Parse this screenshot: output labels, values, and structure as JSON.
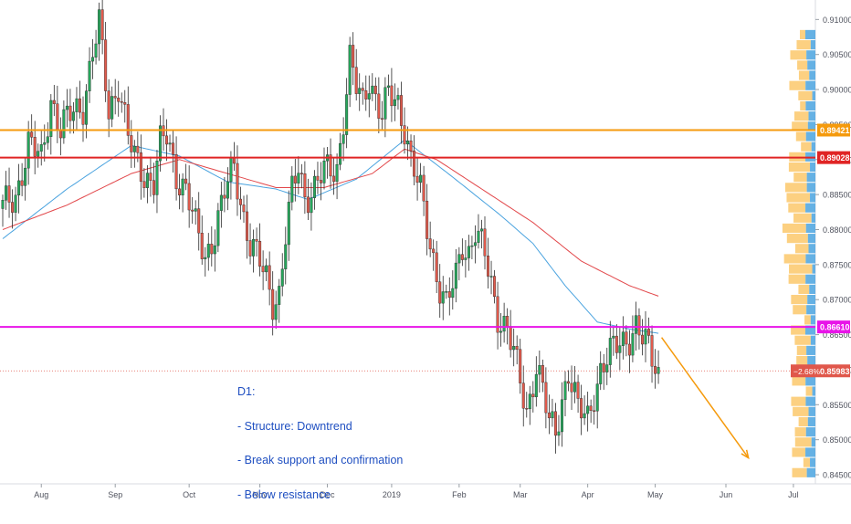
{
  "chart_data": {
    "type": "candlestick",
    "instrument_colors": {
      "up": "#26a65b",
      "down": "#e05a4c",
      "wick": "#2b2b2b"
    },
    "ylim": [
      0.8437,
      0.912
    ],
    "y_ticks": [
      "0.91000",
      "0.90500",
      "0.90000",
      "0.89500",
      "0.89000",
      "0.88500",
      "0.88000",
      "0.87500",
      "0.87000",
      "0.86500",
      "0.86000",
      "0.85500",
      "0.85000",
      "0.84500"
    ],
    "y_tick_values": [
      0.91,
      0.905,
      0.9,
      0.895,
      0.89,
      0.885,
      0.88,
      0.875,
      0.87,
      0.865,
      0.86,
      0.855,
      0.85,
      0.845
    ],
    "x_ticks": [
      "Aug",
      "Sep",
      "Oct",
      "Nov",
      "Dec",
      "2019",
      "Feb",
      "Mar",
      "Apr",
      "May",
      "Jun",
      "Jul"
    ],
    "x_tick_bar_index": [
      12,
      35,
      58,
      80,
      101,
      121,
      142,
      161,
      182,
      203,
      225,
      246
    ],
    "bar_count_total": 260,
    "last_bar_index": 204,
    "horizontal_levels": [
      {
        "name": "resistance-upper",
        "value": 0.89421,
        "label": "0.89421",
        "color": "#f59a0c"
      },
      {
        "name": "resistance-lower",
        "value": 0.89028,
        "label": "0.89028",
        "color": "#e02424"
      },
      {
        "name": "support-broken",
        "value": 0.8661,
        "label": "0.86610",
        "color": "#e815e8"
      }
    ],
    "last_price": {
      "value": 0.85983,
      "label": "0.85983",
      "change_label": "−2.68%",
      "color": "#e0574b"
    },
    "moving_averages": [
      {
        "color": "#4aa3df",
        "anchors": [
          [
            0,
            0.8787
          ],
          [
            20,
            0.8858
          ],
          [
            40,
            0.892
          ],
          [
            55,
            0.8905
          ],
          [
            70,
            0.8868
          ],
          [
            85,
            0.8858
          ],
          [
            95,
            0.8843
          ],
          [
            110,
            0.8872
          ],
          [
            125,
            0.8928
          ],
          [
            140,
            0.8875
          ],
          [
            155,
            0.882
          ],
          [
            165,
            0.878
          ],
          [
            175,
            0.872
          ],
          [
            185,
            0.8668
          ],
          [
            195,
            0.8658
          ],
          [
            204,
            0.8652
          ]
        ]
      },
      {
        "color": "#e2474a",
        "anchors": [
          [
            0,
            0.88
          ],
          [
            20,
            0.8835
          ],
          [
            40,
            0.888
          ],
          [
            55,
            0.89
          ],
          [
            70,
            0.888
          ],
          [
            85,
            0.886
          ],
          [
            100,
            0.886
          ],
          [
            115,
            0.888
          ],
          [
            125,
            0.8915
          ],
          [
            135,
            0.89
          ],
          [
            150,
            0.8855
          ],
          [
            165,
            0.881
          ],
          [
            180,
            0.8755
          ],
          [
            195,
            0.872
          ],
          [
            204,
            0.8705
          ]
        ]
      }
    ],
    "price_path_anchors": [
      [
        0,
        0.883
      ],
      [
        4,
        0.885
      ],
      [
        8,
        0.892
      ],
      [
        12,
        0.89
      ],
      [
        15,
        0.899
      ],
      [
        18,
        0.894
      ],
      [
        22,
        0.897
      ],
      [
        25,
        0.898
      ],
      [
        28,
        0.905
      ],
      [
        30,
        0.909
      ],
      [
        33,
        0.897
      ],
      [
        36,
        0.901
      ],
      [
        39,
        0.893
      ],
      [
        41,
        0.89
      ],
      [
        44,
        0.888
      ],
      [
        47,
        0.887
      ],
      [
        49,
        0.892
      ],
      [
        51,
        0.893
      ],
      [
        54,
        0.888
      ],
      [
        57,
        0.886
      ],
      [
        60,
        0.88
      ],
      [
        63,
        0.876
      ],
      [
        66,
        0.88
      ],
      [
        69,
        0.885
      ],
      [
        72,
        0.889
      ],
      [
        75,
        0.882
      ],
      [
        77,
        0.878
      ],
      [
        80,
        0.875
      ],
      [
        82,
        0.873
      ],
      [
        84,
        0.87
      ],
      [
        86,
        0.871
      ],
      [
        88,
        0.879
      ],
      [
        90,
        0.885
      ],
      [
        92,
        0.889
      ],
      [
        94,
        0.885
      ],
      [
        97,
        0.886
      ],
      [
        100,
        0.888
      ],
      [
        104,
        0.889
      ],
      [
        106,
        0.896
      ],
      [
        108,
        0.904
      ],
      [
        110,
        0.9
      ],
      [
        112,
        0.898
      ],
      [
        114,
        0.902
      ],
      [
        116,
        0.899
      ],
      [
        118,
        0.896
      ],
      [
        120,
        0.899
      ],
      [
        123,
        0.898
      ],
      [
        125,
        0.895
      ],
      [
        127,
        0.89
      ],
      [
        130,
        0.885
      ],
      [
        133,
        0.878
      ],
      [
        136,
        0.872
      ],
      [
        138,
        0.869
      ],
      [
        141,
        0.873
      ],
      [
        143,
        0.878
      ],
      [
        145,
        0.877
      ],
      [
        147,
        0.88
      ],
      [
        150,
        0.876
      ],
      [
        152,
        0.872
      ],
      [
        154,
        0.868
      ],
      [
        157,
        0.866
      ],
      [
        159,
        0.862
      ],
      [
        161,
        0.858
      ],
      [
        163,
        0.854
      ],
      [
        166,
        0.861
      ],
      [
        168,
        0.857
      ],
      [
        170,
        0.852
      ],
      [
        172,
        0.851
      ],
      [
        174,
        0.856
      ],
      [
        176,
        0.86
      ],
      [
        179,
        0.854
      ],
      [
        182,
        0.853
      ],
      [
        184,
        0.857
      ],
      [
        186,
        0.86
      ],
      [
        189,
        0.862
      ],
      [
        192,
        0.864
      ],
      [
        195,
        0.865
      ],
      [
        197,
        0.866
      ],
      [
        199,
        0.864
      ],
      [
        201,
        0.863
      ],
      [
        203,
        0.861
      ],
      [
        204,
        0.8598
      ]
    ],
    "projection_arrow": {
      "from": [
        205,
        0.8646
      ],
      "to": [
        232,
        0.8474
      ],
      "color": "#f59a0c"
    },
    "volume_profile": {
      "color_a": "#fbc86b",
      "color_b": "#4aa3df"
    },
    "annotation_lines": [
      "D1:",
      "- Structure: Downtrend",
      "- Break support and confirmation",
      "- Below resistance"
    ]
  }
}
